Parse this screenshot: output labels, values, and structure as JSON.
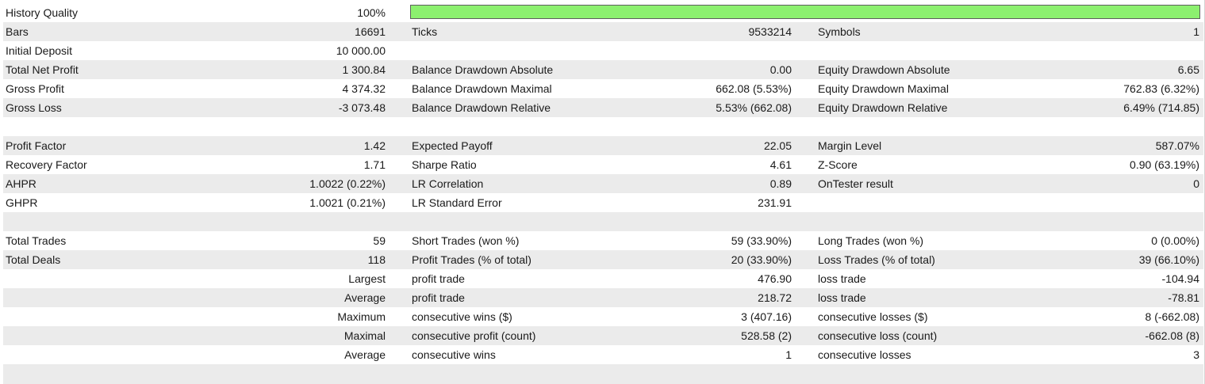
{
  "history_quality": {
    "label": "History Quality",
    "value": "100%",
    "fraction": 1.0
  },
  "row_bars": {
    "l1": "Bars",
    "v1": "16691",
    "l2": "Ticks",
    "v2": "9533214",
    "l3": "Symbols",
    "v3": "1"
  },
  "row_deposit": {
    "l1": "Initial Deposit",
    "v1": "10 000.00"
  },
  "row_net": {
    "l1": "Total Net Profit",
    "v1": "1 300.84",
    "l2": "Balance Drawdown Absolute",
    "v2": "0.00",
    "l3": "Equity Drawdown Absolute",
    "v3": "6.65"
  },
  "row_gross_profit": {
    "l1": "Gross Profit",
    "v1": "4 374.32",
    "l2": "Balance Drawdown Maximal",
    "v2": "662.08 (5.53%)",
    "l3": "Equity Drawdown Maximal",
    "v3": "762.83 (6.32%)"
  },
  "row_gross_loss": {
    "l1": "Gross Loss",
    "v1": "-3 073.48",
    "l2": "Balance Drawdown Relative",
    "v2": "5.53% (662.08)",
    "l3": "Equity Drawdown Relative",
    "v3": "6.49% (714.85)"
  },
  "row_profit_factor": {
    "l1": "Profit Factor",
    "v1": "1.42",
    "l2": "Expected Payoff",
    "v2": "22.05",
    "l3": "Margin Level",
    "v3": "587.07%"
  },
  "row_recovery": {
    "l1": "Recovery Factor",
    "v1": "1.71",
    "l2": "Sharpe Ratio",
    "v2": "4.61",
    "l3": "Z-Score",
    "v3": "0.90 (63.19%)"
  },
  "row_ahpr": {
    "l1": "AHPR",
    "v1": "1.0022 (0.22%)",
    "l2": "LR Correlation",
    "v2": "0.89",
    "l3": "OnTester result",
    "v3": "0"
  },
  "row_ghpr": {
    "l1": "GHPR",
    "v1": "1.0021 (0.21%)",
    "l2": "LR Standard Error",
    "v2": "231.91"
  },
  "row_total_trades": {
    "l1": "Total Trades",
    "v1": "59",
    "l2": "Short Trades (won %)",
    "v2": "59 (33.90%)",
    "l3": "Long Trades (won %)",
    "v3": "0 (0.00%)"
  },
  "row_total_deals": {
    "l1": "Total Deals",
    "v1": "118",
    "l2": "Profit Trades (% of total)",
    "v2": "20 (33.90%)",
    "l3": "Loss Trades (% of total)",
    "v3": "39 (66.10%)"
  },
  "row_largest": {
    "v1": "Largest",
    "l2": "profit trade",
    "v2": "476.90",
    "l3": "loss trade",
    "v3": "-104.94"
  },
  "row_average": {
    "v1": "Average",
    "l2": "profit trade",
    "v2": "218.72",
    "l3": "loss trade",
    "v3": "-78.81"
  },
  "row_maximum": {
    "v1": "Maximum",
    "l2": "consecutive wins ($)",
    "v2": "3 (407.16)",
    "l3": "consecutive losses ($)",
    "v3": "8 (-662.08)"
  },
  "row_maximal": {
    "v1": "Maximal",
    "l2": "consecutive profit (count)",
    "v2": "528.58 (2)",
    "l3": "consecutive loss (count)",
    "v3": "-662.08 (8)"
  },
  "row_avg_consec": {
    "v1": "Average",
    "l2": "consecutive wins",
    "v2": "1",
    "l3": "consecutive losses",
    "v3": "3"
  },
  "colors": {
    "quality_bar": "#8cf06f",
    "row_shade": "#ebebeb"
  }
}
